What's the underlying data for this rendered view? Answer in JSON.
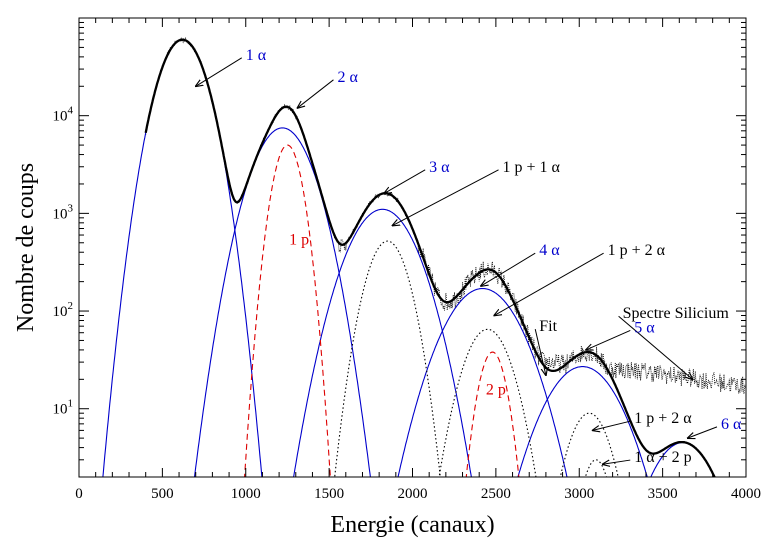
{
  "chart_data": {
    "type": "line",
    "xlabel": "Energie (canaux)",
    "ylabel": "Nombre de coups",
    "xlim": [
      0,
      4000
    ],
    "ylim": [
      2,
      100000
    ],
    "yscale": "log",
    "grid": false,
    "x_ticks": [
      "0",
      "500",
      "1000",
      "1500",
      "2000",
      "2500",
      "3000",
      "3500",
      "4000"
    ],
    "y_ticks": [
      {
        "value": 10,
        "base": "10",
        "exp": "1"
      },
      {
        "value": 100,
        "base": "10",
        "exp": "2"
      },
      {
        "value": 1000,
        "base": "10",
        "exp": "3"
      },
      {
        "value": 10000,
        "base": "10",
        "exp": "4"
      }
    ],
    "colors": {
      "alpha": "#0000cc",
      "proton": "#dd0000",
      "mixed": "#000000",
      "fit": "#000000",
      "spectrum": "#000000"
    },
    "series": [
      {
        "name": "1 α",
        "kind": "alpha",
        "style": "solid",
        "peak": 620,
        "amplitude": 60000,
        "sigma": 105
      },
      {
        "name": "2 α",
        "kind": "alpha",
        "style": "solid",
        "peak": 1220,
        "amplitude": 7500,
        "sigma": 130
      },
      {
        "name": "3 α",
        "kind": "alpha",
        "style": "solid",
        "peak": 1820,
        "amplitude": 1100,
        "sigma": 150
      },
      {
        "name": "4 α",
        "kind": "alpha",
        "style": "solid",
        "peak": 2420,
        "amplitude": 170,
        "sigma": 170
      },
      {
        "name": "5 α",
        "kind": "alpha",
        "style": "solid",
        "peak": 3020,
        "amplitude": 27,
        "sigma": 170
      },
      {
        "name": "6 α",
        "kind": "alpha",
        "style": "solid",
        "peak": 3620,
        "amplitude": 4.5,
        "sigma": 150
      },
      {
        "name": "1 p",
        "kind": "proton",
        "style": "dashed",
        "peak": 1250,
        "amplitude": 5000,
        "sigma": 65
      },
      {
        "name": "2 p",
        "kind": "proton",
        "style": "dashed",
        "peak": 2480,
        "amplitude": 38,
        "sigma": 65
      },
      {
        "name": "1 p + 1 α",
        "kind": "mixed",
        "style": "dotted",
        "peak": 1850,
        "amplitude": 520,
        "sigma": 95
      },
      {
        "name": "1 p + 2 α",
        "kind": "mixed",
        "style": "dotted",
        "peak": 2450,
        "amplitude": 65,
        "sigma": 110
      },
      {
        "name": "1 p + 2 α",
        "kind": "mixed",
        "style": "dotted",
        "peak": 3060,
        "amplitude": 9,
        "sigma": 100
      },
      {
        "name": "1 α + 2 p",
        "kind": "mixed",
        "style": "dotted",
        "peak": 3100,
        "amplitude": 3,
        "sigma": 70
      }
    ],
    "spectrum_floor": [
      {
        "x": 1000,
        "y": 280
      },
      {
        "x": 1600,
        "y": 280
      },
      {
        "x": 2200,
        "y": 80
      },
      {
        "x": 2800,
        "y": 30
      },
      {
        "x": 3400,
        "y": 24
      },
      {
        "x": 4000,
        "y": 17
      }
    ],
    "spectrum_range": [
      400,
      4000
    ],
    "fit_range": [
      400,
      3880
    ],
    "annotations": [
      {
        "text": "1 α",
        "color": "#0000cc",
        "x": 700,
        "y": 20000,
        "label_x": 1000,
        "label_y": 42000
      },
      {
        "text": "2 α",
        "color": "#0000cc",
        "x": 1310,
        "y": 12000,
        "label_x": 1550,
        "label_y": 25000
      },
      {
        "text": "3 α",
        "color": "#0000cc",
        "x": 1830,
        "y": 1600,
        "label_x": 2100,
        "label_y": 3000
      },
      {
        "text": "1 p + 1 α",
        "color": "#000000",
        "x": 1880,
        "y": 750,
        "label_x": 2540,
        "label_y": 3000
      },
      {
        "text": "4 α",
        "color": "#0000cc",
        "x": 2410,
        "y": 180,
        "label_x": 2760,
        "label_y": 420
      },
      {
        "text": "1 p + 2 α",
        "color": "#000000",
        "x": 2490,
        "y": 90,
        "label_x": 3170,
        "label_y": 420
      },
      {
        "text": "Spectre Silicium",
        "color": "#000000",
        "x": 3680,
        "y": 20,
        "label_x": 3260,
        "label_y": 95
      },
      {
        "text": "Fit",
        "color": "#000000",
        "x": 2800,
        "y": 22,
        "label_x": 2760,
        "label_y": 70
      },
      {
        "text": "5 α",
        "color": "#0000cc",
        "x": 3040,
        "y": 40,
        "label_x": 3330,
        "label_y": 68
      },
      {
        "text": "1 p + 2 α",
        "color": "#000000",
        "x": 3080,
        "y": 6,
        "label_x": 3330,
        "label_y": 8
      },
      {
        "text": "6 α",
        "color": "#0000cc",
        "x": 3650,
        "y": 5,
        "label_x": 3850,
        "label_y": 7
      },
      {
        "text": "1 α + 2 p",
        "color": "#000000",
        "x": 3140,
        "y": 2.7,
        "label_x": 3330,
        "label_y": 3.2
      }
    ],
    "region_labels": [
      {
        "text": "1 p",
        "color": "#dd0000",
        "x": 1260,
        "y": 480
      },
      {
        "text": "2 p",
        "color": "#dd0000",
        "x": 2440,
        "y": 14
      }
    ]
  }
}
